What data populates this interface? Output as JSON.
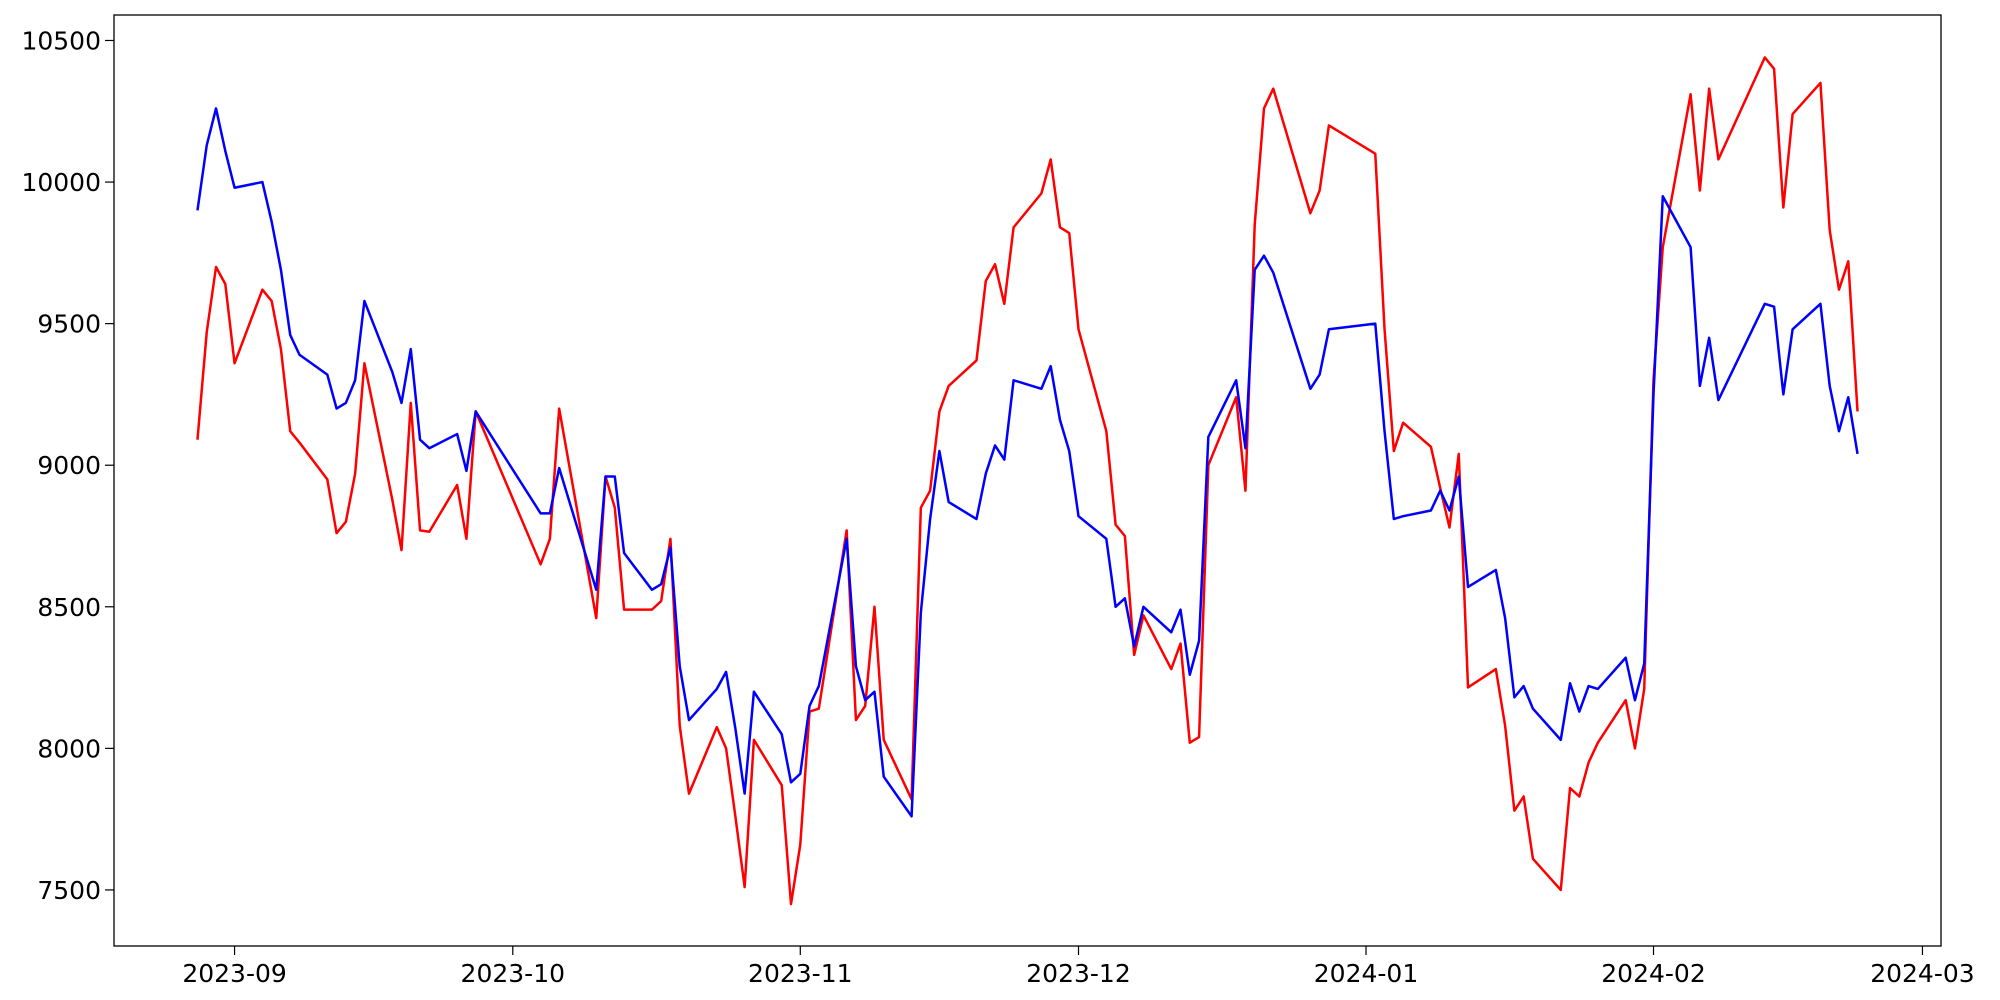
{
  "chart_data": {
    "type": "line",
    "x": [
      "2023-08-28",
      "2023-08-29",
      "2023-08-30",
      "2023-08-31",
      "2023-09-01",
      "2023-09-04",
      "2023-09-05",
      "2023-09-06",
      "2023-09-07",
      "2023-09-08",
      "2023-09-11",
      "2023-09-12",
      "2023-09-13",
      "2023-09-14",
      "2023-09-15",
      "2023-09-18",
      "2023-09-19",
      "2023-09-20",
      "2023-09-21",
      "2023-09-22",
      "2023-09-25",
      "2023-09-26",
      "2023-09-27",
      "2023-10-04",
      "2023-10-05",
      "2023-10-06",
      "2023-10-10",
      "2023-10-11",
      "2023-10-12",
      "2023-10-13",
      "2023-10-16",
      "2023-10-17",
      "2023-10-18",
      "2023-10-19",
      "2023-10-20",
      "2023-10-23",
      "2023-10-24",
      "2023-10-25",
      "2023-10-26",
      "2023-10-27",
      "2023-10-30",
      "2023-10-31",
      "2023-11-01",
      "2023-11-02",
      "2023-11-03",
      "2023-11-06",
      "2023-11-07",
      "2023-11-08",
      "2023-11-09",
      "2023-11-10",
      "2023-11-13",
      "2023-11-14",
      "2023-11-15",
      "2023-11-16",
      "2023-11-17",
      "2023-11-20",
      "2023-11-21",
      "2023-11-22",
      "2023-11-23",
      "2023-11-24",
      "2023-11-27",
      "2023-11-28",
      "2023-11-29",
      "2023-11-30",
      "2023-12-01",
      "2023-12-04",
      "2023-12-05",
      "2023-12-06",
      "2023-12-07",
      "2023-12-08",
      "2023-12-11",
      "2023-12-12",
      "2023-12-13",
      "2023-12-14",
      "2023-12-15",
      "2023-12-18",
      "2023-12-19",
      "2023-12-20",
      "2023-12-21",
      "2023-12-22",
      "2023-12-26",
      "2023-12-27",
      "2023-12-28",
      "2024-01-02",
      "2024-01-03",
      "2024-01-04",
      "2024-01-05",
      "2024-01-08",
      "2024-01-09",
      "2024-01-10",
      "2024-01-11",
      "2024-01-12",
      "2024-01-15",
      "2024-01-16",
      "2024-01-17",
      "2024-01-18",
      "2024-01-19",
      "2024-01-22",
      "2024-01-23",
      "2024-01-24",
      "2024-01-25",
      "2024-01-26",
      "2024-01-29",
      "2024-01-30",
      "2024-01-31",
      "2024-02-01",
      "2024-02-02",
      "2024-02-05",
      "2024-02-06",
      "2024-02-07",
      "2024-02-08",
      "2024-02-13",
      "2024-02-14",
      "2024-02-15",
      "2024-02-16",
      "2024-02-19",
      "2024-02-20",
      "2024-02-21",
      "2024-02-22",
      "2024-02-23"
    ],
    "series": [
      {
        "color": "#ff0000",
        "values": [
          9090,
          9470,
          9700,
          9640,
          9360,
          9620,
          9580,
          9410,
          9120,
          9080,
          8950,
          8760,
          8800,
          8970,
          9360,
          8880,
          8700,
          9220,
          8770,
          8765,
          8930,
          8740,
          9190,
          8650,
          8740,
          9200,
          8460,
          8960,
          8850,
          8490,
          8490,
          8520,
          8740,
          8080,
          7840,
          8075,
          8000,
          7760,
          7510,
          8030,
          7870,
          7450,
          7660,
          8130,
          8140,
          8770,
          8100,
          8150,
          8500,
          8030,
          7820,
          8850,
          8910,
          9190,
          9280,
          9370,
          9650,
          9710,
          9570,
          9840,
          9960,
          10080,
          9840,
          9820,
          9480,
          9120,
          8790,
          8750,
          8330,
          8470,
          8280,
          8370,
          8020,
          8040,
          9000,
          9240,
          8910,
          9850,
          10260,
          10330,
          9890,
          9970,
          10200,
          10100,
          9480,
          9050,
          9150,
          9065,
          8920,
          8780,
          9040,
          8215,
          8280,
          8080,
          7780,
          7830,
          7610,
          7500,
          7860,
          7830,
          7950,
          8020,
          8170,
          8000,
          8210,
          9300,
          9770,
          10310,
          9970,
          10330,
          10080,
          10440,
          10400,
          9910,
          10240,
          10350,
          9830,
          9620,
          9720,
          9190
        ]
      },
      {
        "color": "#0000ff",
        "values": [
          9900,
          10130,
          10260,
          10110,
          9980,
          10000,
          9860,
          9690,
          9460,
          9390,
          9320,
          9200,
          9220,
          9300,
          9580,
          9330,
          9220,
          9410,
          9090,
          9060,
          9110,
          8980,
          9190,
          8830,
          8830,
          8990,
          8560,
          8960,
          8960,
          8690,
          8560,
          8580,
          8710,
          8290,
          8100,
          8210,
          8270,
          8070,
          7840,
          8200,
          8050,
          7880,
          7910,
          8150,
          8220,
          8740,
          8290,
          8170,
          8200,
          7900,
          7760,
          8480,
          8810,
          9050,
          8870,
          8810,
          8970,
          9070,
          9020,
          9300,
          9270,
          9350,
          9160,
          9050,
          8820,
          8740,
          8500,
          8530,
          8360,
          8500,
          8410,
          8490,
          8260,
          8380,
          9100,
          9300,
          9060,
          9690,
          9740,
          9680,
          9270,
          9320,
          9480,
          9500,
          9120,
          8810,
          8820,
          8840,
          8910,
          8840,
          8960,
          8570,
          8630,
          8460,
          8180,
          8220,
          8140,
          8030,
          8230,
          8130,
          8220,
          8210,
          8320,
          8170,
          8300,
          9250,
          9950,
          9770,
          9280,
          9450,
          9230,
          9570,
          9560,
          9250,
          9480,
          9570,
          9280,
          9120,
          9240,
          9040
        ]
      }
    ],
    "xlim": [
      "2023-08-19",
      "2024-03-03"
    ],
    "xticks": [
      "2023-09",
      "2023-10",
      "2023-11",
      "2023-12",
      "2024-01",
      "2024-02",
      "2024-03"
    ],
    "ylim": [
      7302,
      10590
    ],
    "yticks": [
      7500,
      8000,
      8500,
      9000,
      9500,
      10000,
      10500
    ],
    "grid": false
  }
}
